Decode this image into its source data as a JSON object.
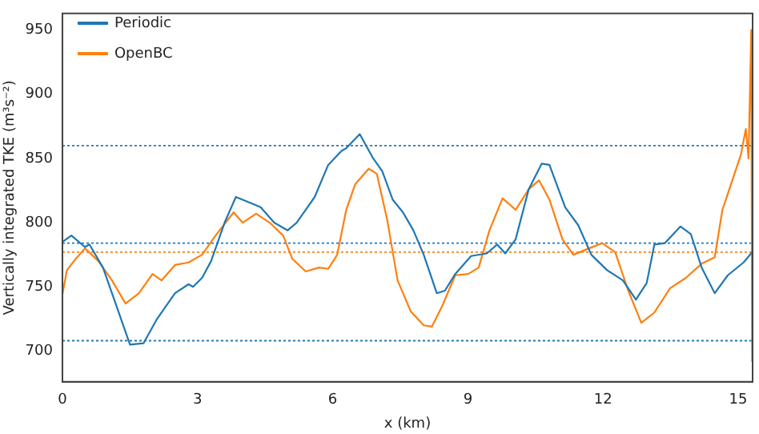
{
  "chart_data": {
    "type": "line",
    "xlabel": "x (km)",
    "ylabel": "Vertically integrated TKE (m³s⁻²)",
    "xlim": [
      0,
      15.32
    ],
    "ylim": [
      676,
      963
    ],
    "xticks": [
      0,
      3,
      6,
      9,
      12,
      15
    ],
    "yticks": [
      700,
      750,
      800,
      850,
      900,
      950
    ],
    "grid": false,
    "legend": "top left",
    "marker": "none",
    "line_style": "solid",
    "ref_lines": [
      {
        "axis": "y",
        "value": 860,
        "color": "#1f77b4",
        "line_style": "dotted"
      },
      {
        "axis": "y",
        "value": 784,
        "color": "#1f77b4",
        "line_style": "dotted"
      },
      {
        "axis": "y",
        "value": 708,
        "color": "#1f77b4",
        "line_style": "dotted"
      },
      {
        "axis": "y",
        "value": 777,
        "color": "#ff7f0e",
        "line_style": "dotted"
      }
    ],
    "series": [
      {
        "name": "Periodic",
        "color": "#1f77b4",
        "x": [
          0,
          0.2,
          0.5,
          0.6,
          0.9,
          1.2,
          1.5,
          1.8,
          2.1,
          2.5,
          2.8,
          2.9,
          3.1,
          3.3,
          3.6,
          3.85,
          4.2,
          4.4,
          4.7,
          5.0,
          5.2,
          5.6,
          5.9,
          6.2,
          6.3,
          6.6,
          6.9,
          7.1,
          7.33,
          7.56,
          7.79,
          8.02,
          8.31,
          8.49,
          8.72,
          9.07,
          9.42,
          9.65,
          9.83,
          10.06,
          10.35,
          10.64,
          10.81,
          11.16,
          11.45,
          11.74,
          12.09,
          12.44,
          12.73,
          12.97,
          13.14,
          13.37,
          13.72,
          13.95,
          14.19,
          14.48,
          14.77,
          15.12,
          15.31
        ],
        "values": [
          785,
          790,
          781,
          783,
          765,
          735,
          705,
          706,
          725,
          745,
          752,
          750,
          757,
          770,
          800,
          820,
          815,
          812,
          800,
          794,
          800,
          820,
          845,
          856,
          858,
          869,
          850,
          840,
          818,
          808,
          794,
          775,
          745,
          747,
          760,
          774,
          776,
          783,
          776,
          787,
          826,
          846,
          845,
          812,
          798,
          775,
          763,
          755,
          740,
          753,
          783,
          784,
          797,
          791,
          765,
          745,
          759,
          769,
          777
        ]
      },
      {
        "name": "OpenBC",
        "color": "#ff7f0e",
        "x": [
          0,
          0.1,
          0.3,
          0.5,
          0.8,
          1.1,
          1.4,
          1.7,
          2.0,
          2.2,
          2.5,
          2.8,
          3.1,
          3.4,
          3.8,
          4.0,
          4.3,
          4.6,
          4.9,
          5.1,
          5.4,
          5.7,
          5.9,
          6.1,
          6.3,
          6.5,
          6.8,
          6.98,
          7.21,
          7.44,
          7.73,
          8.02,
          8.2,
          8.43,
          8.72,
          9.01,
          9.24,
          9.48,
          9.77,
          10.06,
          10.35,
          10.58,
          10.81,
          11.1,
          11.34,
          11.69,
          11.98,
          12.27,
          12.56,
          12.85,
          13.14,
          13.49,
          13.84,
          14.19,
          14.48,
          14.65,
          14.88,
          15.06,
          15.17,
          15.23,
          15.29,
          15.31
        ],
        "values": [
          744,
          763,
          772,
          780,
          770,
          755,
          737,
          745,
          760,
          755,
          767,
          769,
          775,
          790,
          808,
          800,
          807,
          800,
          790,
          772,
          762,
          765,
          764,
          775,
          810,
          830,
          842,
          838,
          802,
          755,
          731,
          720,
          719,
          735,
          759,
          760,
          765,
          794,
          819,
          810,
          826,
          833,
          818,
          787,
          775,
          780,
          784,
          777,
          747,
          722,
          730,
          749,
          757,
          768,
          773,
          810,
          834,
          853,
          873,
          850,
          950,
          692
        ]
      }
    ]
  }
}
